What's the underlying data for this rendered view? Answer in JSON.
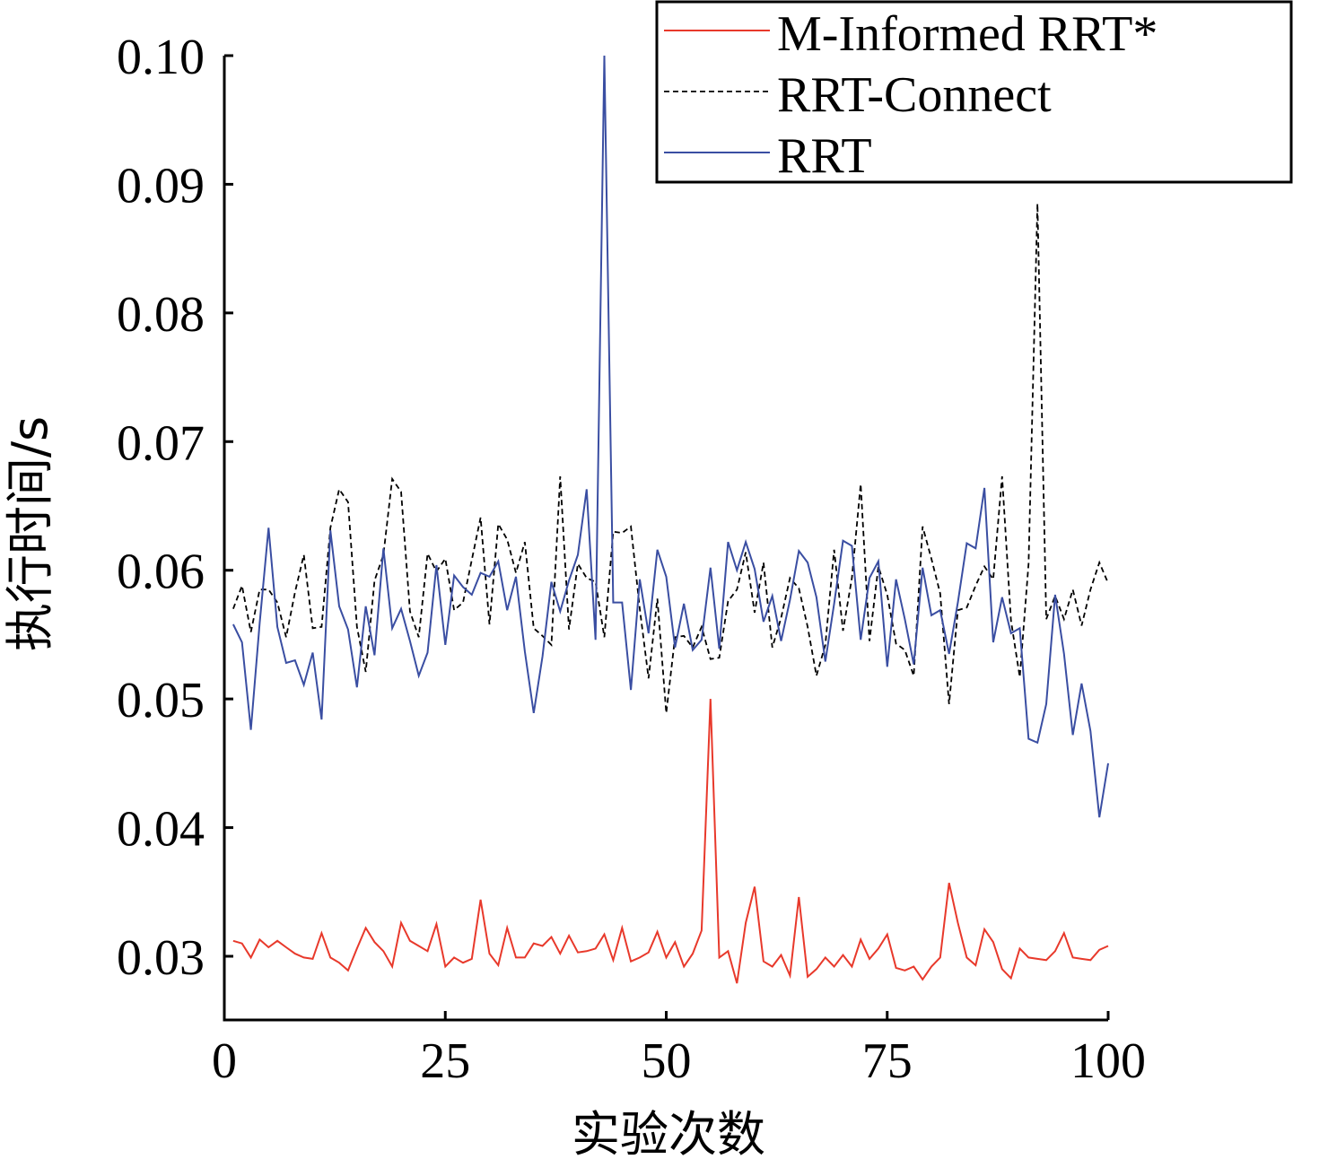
{
  "chart_data": {
    "type": "line",
    "title": "",
    "xlabel": "实验次数",
    "ylabel": "执行时间/s",
    "xlim": [
      0,
      100
    ],
    "ylim": [
      0.0275,
      0.1
    ],
    "xticks": [
      "0",
      "25",
      "50",
      "75",
      "100"
    ],
    "xtick_values": [
      0,
      25,
      50,
      75,
      100
    ],
    "yticks": [
      "0.03",
      "0.04",
      "0.05",
      "0.06",
      "0.07",
      "0.08",
      "0.09",
      "0.10"
    ],
    "ytick_values": [
      0.03,
      0.04,
      0.05,
      0.06,
      0.07,
      0.08,
      0.09,
      0.1
    ],
    "grid": false,
    "legend_position": "top-right",
    "x": [
      1,
      2,
      3,
      4,
      5,
      6,
      7,
      8,
      9,
      10,
      11,
      12,
      13,
      14,
      15,
      16,
      17,
      18,
      19,
      20,
      21,
      22,
      23,
      24,
      25,
      26,
      27,
      28,
      29,
      30,
      31,
      32,
      33,
      34,
      35,
      36,
      37,
      38,
      39,
      40,
      41,
      42,
      43,
      44,
      45,
      46,
      47,
      48,
      49,
      50,
      51,
      52,
      53,
      54,
      55,
      56,
      57,
      58,
      59,
      60,
      61,
      62,
      63,
      64,
      65,
      66,
      67,
      68,
      69,
      70,
      71,
      72,
      73,
      74,
      75,
      76,
      77,
      78,
      79,
      80,
      81,
      82,
      83,
      84,
      85,
      86,
      87,
      88,
      89,
      90,
      91,
      92,
      93,
      94,
      95,
      96,
      97,
      98,
      99,
      100
    ],
    "series": [
      {
        "name": "M-Informed RRT*",
        "color": "#e8392b",
        "dash": "solid",
        "values": [
          0.0312,
          0.031,
          0.0299,
          0.0313,
          0.0307,
          0.0312,
          0.0307,
          0.0302,
          0.0299,
          0.0298,
          0.0318,
          0.0299,
          0.0295,
          0.0289,
          0.0306,
          0.0322,
          0.0311,
          0.0304,
          0.0292,
          0.0326,
          0.0312,
          0.0308,
          0.0304,
          0.0325,
          0.0292,
          0.0299,
          0.0295,
          0.0298,
          0.0344,
          0.0302,
          0.0293,
          0.0322,
          0.0299,
          0.0299,
          0.031,
          0.0308,
          0.0315,
          0.0302,
          0.0316,
          0.0303,
          0.0304,
          0.0306,
          0.0317,
          0.0297,
          0.0322,
          0.0296,
          0.0299,
          0.0303,
          0.0319,
          0.0299,
          0.0311,
          0.0292,
          0.0302,
          0.032,
          0.05,
          0.0299,
          0.0304,
          0.0279,
          0.0326,
          0.0354,
          0.0296,
          0.0292,
          0.0301,
          0.0285,
          0.0346,
          0.0284,
          0.029,
          0.0299,
          0.0292,
          0.0301,
          0.0292,
          0.0313,
          0.0298,
          0.0306,
          0.0317,
          0.0291,
          0.0289,
          0.0292,
          0.0282,
          0.0292,
          0.0299,
          0.0357,
          0.0326,
          0.0299,
          0.0293,
          0.0321,
          0.0311,
          0.029,
          0.0283,
          0.0306,
          0.0299,
          0.0298,
          0.0297,
          0.0304,
          0.0318,
          0.0299,
          0.0298,
          0.0297,
          0.0305,
          0.0308
        ]
      },
      {
        "name": "RRT-Connect",
        "color": "#000000",
        "dash": "dashed",
        "values": [
          0.057,
          0.0588,
          0.0552,
          0.0585,
          0.0585,
          0.0575,
          0.0548,
          0.0583,
          0.0612,
          0.0555,
          0.0556,
          0.0633,
          0.0663,
          0.0653,
          0.0556,
          0.0521,
          0.0592,
          0.0612,
          0.0671,
          0.0661,
          0.0568,
          0.0548,
          0.0613,
          0.0599,
          0.0609,
          0.0569,
          0.0575,
          0.0608,
          0.0641,
          0.0558,
          0.0636,
          0.0624,
          0.0598,
          0.0622,
          0.0555,
          0.0549,
          0.0542,
          0.0673,
          0.0554,
          0.0605,
          0.0594,
          0.0591,
          0.0548,
          0.063,
          0.0629,
          0.0634,
          0.057,
          0.0516,
          0.0578,
          0.0489,
          0.0548,
          0.0549,
          0.054,
          0.0556,
          0.0531,
          0.0532,
          0.0576,
          0.0585,
          0.0614,
          0.0567,
          0.0606,
          0.054,
          0.0563,
          0.0594,
          0.0586,
          0.0556,
          0.0518,
          0.0542,
          0.0616,
          0.0553,
          0.0594,
          0.0667,
          0.0545,
          0.0603,
          0.0581,
          0.0543,
          0.0538,
          0.0518,
          0.0634,
          0.0609,
          0.0582,
          0.0496,
          0.0569,
          0.0571,
          0.0588,
          0.0603,
          0.0593,
          0.0673,
          0.0561,
          0.0517,
          0.0605,
          0.0885,
          0.0562,
          0.058,
          0.0562,
          0.0585,
          0.0557,
          0.0585,
          0.0606,
          0.059
        ]
      },
      {
        "name": "RRT",
        "color": "#3a4ea2",
        "dash": "solid",
        "values": [
          0.0558,
          0.0544,
          0.0476,
          0.0559,
          0.0633,
          0.0556,
          0.0528,
          0.053,
          0.0511,
          0.0536,
          0.0484,
          0.0631,
          0.0572,
          0.0554,
          0.0509,
          0.0572,
          0.0534,
          0.0617,
          0.0555,
          0.057,
          0.0545,
          0.0518,
          0.0536,
          0.0604,
          0.0542,
          0.0596,
          0.0587,
          0.0581,
          0.0598,
          0.0595,
          0.0607,
          0.0569,
          0.0595,
          0.0537,
          0.0489,
          0.0533,
          0.0591,
          0.0568,
          0.0592,
          0.0612,
          0.0663,
          0.0546,
          0.1,
          0.0575,
          0.0575,
          0.0507,
          0.0593,
          0.0551,
          0.0616,
          0.0595,
          0.054,
          0.0574,
          0.0538,
          0.0546,
          0.0602,
          0.0539,
          0.0622,
          0.06,
          0.0622,
          0.0601,
          0.056,
          0.058,
          0.0545,
          0.0577,
          0.0615,
          0.0606,
          0.0579,
          0.0529,
          0.0574,
          0.0623,
          0.0619,
          0.0546,
          0.0594,
          0.0607,
          0.0525,
          0.0593,
          0.0562,
          0.0527,
          0.0602,
          0.0565,
          0.0569,
          0.0535,
          0.0575,
          0.0621,
          0.0617,
          0.0664,
          0.0544,
          0.0579,
          0.0551,
          0.0555,
          0.0469,
          0.0466,
          0.0496,
          0.0581,
          0.0535,
          0.0472,
          0.0512,
          0.0475,
          0.0408,
          0.045
        ]
      }
    ]
  }
}
